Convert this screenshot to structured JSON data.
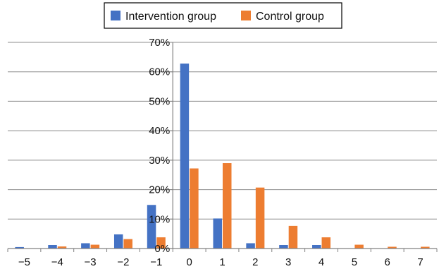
{
  "chart_data": {
    "type": "bar",
    "categories": [
      "−5",
      "−4",
      "−3",
      "−2",
      "−1",
      "0",
      "1",
      "2",
      "3",
      "4",
      "5",
      "6",
      "7"
    ],
    "series": [
      {
        "name": "Intervention group",
        "color": "#4472C4",
        "values": [
          0.5,
          1.2,
          1.8,
          4.8,
          14.8,
          62.8,
          10.2,
          1.8,
          1.2,
          1.2,
          0.0,
          0.0,
          0.0
        ]
      },
      {
        "name": "Control group",
        "color": "#ED7D31",
        "values": [
          0.0,
          0.7,
          1.3,
          3.2,
          3.8,
          27.2,
          29.0,
          20.7,
          7.7,
          3.8,
          1.3,
          0.6,
          0.6
        ]
      }
    ],
    "yticks": [
      "0%",
      "10%",
      "20%",
      "30%",
      "40%",
      "50%",
      "60%",
      "70%"
    ],
    "ylim": [
      0,
      70
    ],
    "xlabel": "",
    "ylabel": "",
    "title": "",
    "grid": true,
    "legend_position": "top-center"
  }
}
